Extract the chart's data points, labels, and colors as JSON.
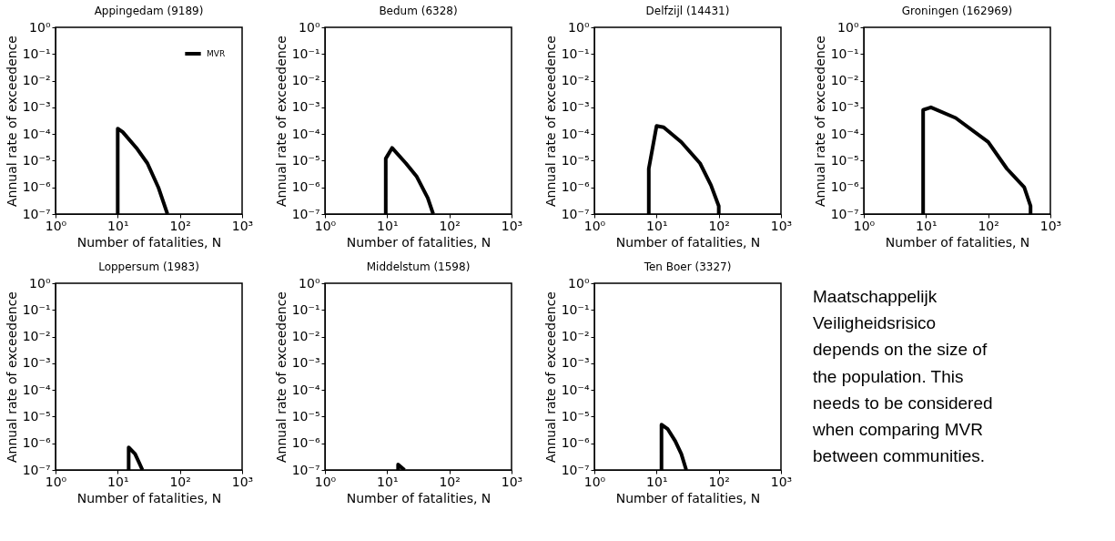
{
  "chart_data": [
    {
      "type": "line",
      "title": "Appingedam (9189)",
      "xlabel": "Number of fatalities, N",
      "ylabel": "Annual rate of exceedence",
      "log": "xy",
      "grid": false,
      "legend": "top right",
      "marker": "none",
      "line_style": "solid",
      "xlim": [
        1,
        1000
      ],
      "ylim": [
        1e-07,
        1
      ],
      "xticks": [
        {
          "value": 1,
          "label": "10⁰"
        },
        {
          "value": 10,
          "label": "10¹"
        },
        {
          "value": 100,
          "label": "10²"
        },
        {
          "value": 1000,
          "label": "10³"
        }
      ],
      "yticks": [
        {
          "value": 1e-07,
          "label": "10⁻⁷"
        },
        {
          "value": 1e-06,
          "label": "10⁻⁶"
        },
        {
          "value": 1e-05,
          "label": "10⁻⁵"
        },
        {
          "value": 0.0001,
          "label": "10⁻⁴"
        },
        {
          "value": 0.001,
          "label": "10⁻³"
        },
        {
          "value": 0.01,
          "label": "10⁻²"
        },
        {
          "value": 0.1,
          "label": "10⁻¹"
        },
        {
          "value": 1,
          "label": "10⁰"
        }
      ],
      "series": [
        {
          "name": "MVR",
          "color": "#000000",
          "x": [
            10,
            10,
            12,
            20,
            30,
            45,
            63
          ],
          "values": [
            1e-07,
            0.00016,
            0.00012,
            3e-05,
            8e-06,
            1e-06,
            1e-07
          ]
        }
      ]
    },
    {
      "type": "line",
      "title": "Bedum (6328)",
      "xlabel": "Number of fatalities, N",
      "ylabel": "Annual rate of exceedence",
      "log": "xy",
      "grid": false,
      "marker": "none",
      "line_style": "solid",
      "xlim": [
        1,
        1000
      ],
      "ylim": [
        1e-07,
        1
      ],
      "xticks": [
        {
          "value": 1,
          "label": "10⁰"
        },
        {
          "value": 10,
          "label": "10¹"
        },
        {
          "value": 100,
          "label": "10²"
        },
        {
          "value": 1000,
          "label": "10³"
        }
      ],
      "yticks": [
        {
          "value": 1e-07,
          "label": "10⁻⁷"
        },
        {
          "value": 1e-06,
          "label": "10⁻⁶"
        },
        {
          "value": 1e-05,
          "label": "10⁻⁵"
        },
        {
          "value": 0.0001,
          "label": "10⁻⁴"
        },
        {
          "value": 0.001,
          "label": "10⁻³"
        },
        {
          "value": 0.01,
          "label": "10⁻²"
        },
        {
          "value": 0.1,
          "label": "10⁻¹"
        },
        {
          "value": 1,
          "label": "10⁰"
        }
      ],
      "series": [
        {
          "color": "#000000",
          "x": [
            9.5,
            9.5,
            12,
            20,
            30,
            45,
            55
          ],
          "values": [
            1e-07,
            1.2e-05,
            3e-05,
            8e-06,
            2.5e-06,
            4e-07,
            1e-07
          ]
        }
      ]
    },
    {
      "type": "line",
      "title": "Delfzijl (14431)",
      "xlabel": "Number of fatalities, N",
      "ylabel": "Annual rate of exceedence",
      "log": "xy",
      "grid": false,
      "marker": "none",
      "line_style": "solid",
      "xlim": [
        1,
        1000
      ],
      "ylim": [
        1e-07,
        1
      ],
      "xticks": [
        {
          "value": 1,
          "label": "10⁰"
        },
        {
          "value": 10,
          "label": "10¹"
        },
        {
          "value": 100,
          "label": "10²"
        },
        {
          "value": 1000,
          "label": "10³"
        }
      ],
      "yticks": [
        {
          "value": 1e-07,
          "label": "10⁻⁷"
        },
        {
          "value": 1e-06,
          "label": "10⁻⁶"
        },
        {
          "value": 1e-05,
          "label": "10⁻⁵"
        },
        {
          "value": 0.0001,
          "label": "10⁻⁴"
        },
        {
          "value": 0.001,
          "label": "10⁻³"
        },
        {
          "value": 0.01,
          "label": "10⁻²"
        },
        {
          "value": 0.1,
          "label": "10⁻¹"
        },
        {
          "value": 1,
          "label": "10⁰"
        }
      ],
      "series": [
        {
          "color": "#000000",
          "x": [
            7.5,
            7.5,
            10,
            13,
            25,
            50,
            75,
            100,
            100
          ],
          "values": [
            1e-07,
            5e-06,
            0.0002,
            0.00018,
            5e-05,
            8e-06,
            1.2e-06,
            2e-07,
            1e-07
          ]
        }
      ]
    },
    {
      "type": "line",
      "title": "Groningen (162969)",
      "xlabel": "Number of fatalities, N",
      "ylabel": "Annual rate of exceedence",
      "log": "xy",
      "grid": false,
      "marker": "none",
      "line_style": "solid",
      "xlim": [
        1,
        1000
      ],
      "ylim": [
        1e-07,
        1
      ],
      "xticks": [
        {
          "value": 1,
          "label": "10⁰"
        },
        {
          "value": 10,
          "label": "10¹"
        },
        {
          "value": 100,
          "label": "10²"
        },
        {
          "value": 1000,
          "label": "10³"
        }
      ],
      "yticks": [
        {
          "value": 1e-07,
          "label": "10⁻⁷"
        },
        {
          "value": 1e-06,
          "label": "10⁻⁶"
        },
        {
          "value": 1e-05,
          "label": "10⁻⁵"
        },
        {
          "value": 0.0001,
          "label": "10⁻⁴"
        },
        {
          "value": 0.001,
          "label": "10⁻³"
        },
        {
          "value": 0.01,
          "label": "10⁻²"
        },
        {
          "value": 0.1,
          "label": "10⁻¹"
        },
        {
          "value": 1,
          "label": "10⁰"
        }
      ],
      "series": [
        {
          "color": "#000000",
          "x": [
            9,
            9,
            12,
            30,
            100,
            200,
            380,
            480,
            480
          ],
          "values": [
            1e-07,
            0.0008,
            0.001,
            0.0004,
            5e-05,
            5e-06,
            1e-06,
            2e-07,
            1e-07
          ]
        }
      ]
    },
    {
      "type": "line",
      "title": "Loppersum (1983)",
      "xlabel": "Number of fatalities, N",
      "ylabel": "Annual rate of exceedence",
      "log": "xy",
      "grid": false,
      "marker": "none",
      "line_style": "solid",
      "xlim": [
        1,
        1000
      ],
      "ylim": [
        1e-07,
        1
      ],
      "xticks": [
        {
          "value": 1,
          "label": "10⁰"
        },
        {
          "value": 10,
          "label": "10¹"
        },
        {
          "value": 100,
          "label": "10²"
        },
        {
          "value": 1000,
          "label": "10³"
        }
      ],
      "yticks": [
        {
          "value": 1e-07,
          "label": "10⁻⁷"
        },
        {
          "value": 1e-06,
          "label": "10⁻⁶"
        },
        {
          "value": 1e-05,
          "label": "10⁻⁵"
        },
        {
          "value": 0.0001,
          "label": "10⁻⁴"
        },
        {
          "value": 0.001,
          "label": "10⁻³"
        },
        {
          "value": 0.01,
          "label": "10⁻²"
        },
        {
          "value": 0.1,
          "label": "10⁻¹"
        },
        {
          "value": 1,
          "label": "10⁰"
        }
      ],
      "series": [
        {
          "color": "#000000",
          "x": [
            15,
            15,
            19,
            25
          ],
          "values": [
            1e-07,
            7e-07,
            4e-07,
            1e-07
          ]
        }
      ]
    },
    {
      "type": "line",
      "title": "Middelstum (1598)",
      "xlabel": "Number of fatalities, N",
      "ylabel": "Annual rate of exceedence",
      "log": "xy",
      "grid": false,
      "marker": "none",
      "line_style": "solid",
      "xlim": [
        1,
        1000
      ],
      "ylim": [
        1e-07,
        1
      ],
      "xticks": [
        {
          "value": 1,
          "label": "10⁰"
        },
        {
          "value": 10,
          "label": "10¹"
        },
        {
          "value": 100,
          "label": "10²"
        },
        {
          "value": 1000,
          "label": "10³"
        }
      ],
      "yticks": [
        {
          "value": 1e-07,
          "label": "10⁻⁷"
        },
        {
          "value": 1e-06,
          "label": "10⁻⁶"
        },
        {
          "value": 1e-05,
          "label": "10⁻⁵"
        },
        {
          "value": 0.0001,
          "label": "10⁻⁴"
        },
        {
          "value": 0.001,
          "label": "10⁻³"
        },
        {
          "value": 0.01,
          "label": "10⁻²"
        },
        {
          "value": 0.1,
          "label": "10⁻¹"
        },
        {
          "value": 1,
          "label": "10⁰"
        }
      ],
      "series": [
        {
          "color": "#000000",
          "x": [
            15,
            15,
            19
          ],
          "values": [
            1e-07,
            1.6e-07,
            1e-07
          ]
        }
      ]
    },
    {
      "type": "line",
      "title": "Ten Boer (3327)",
      "xlabel": "Number of fatalities, N",
      "ylabel": "Annual rate of exceedence",
      "log": "xy",
      "grid": false,
      "marker": "none",
      "line_style": "solid",
      "xlim": [
        1,
        1000
      ],
      "ylim": [
        1e-07,
        1
      ],
      "xticks": [
        {
          "value": 1,
          "label": "10⁰"
        },
        {
          "value": 10,
          "label": "10¹"
        },
        {
          "value": 100,
          "label": "10²"
        },
        {
          "value": 1000,
          "label": "10³"
        }
      ],
      "yticks": [
        {
          "value": 1e-07,
          "label": "10⁻⁷"
        },
        {
          "value": 1e-06,
          "label": "10⁻⁶"
        },
        {
          "value": 1e-05,
          "label": "10⁻⁵"
        },
        {
          "value": 0.0001,
          "label": "10⁻⁴"
        },
        {
          "value": 0.001,
          "label": "10⁻³"
        },
        {
          "value": 0.01,
          "label": "10⁻²"
        },
        {
          "value": 0.1,
          "label": "10⁻¹"
        },
        {
          "value": 1,
          "label": "10⁰"
        }
      ],
      "series": [
        {
          "color": "#000000",
          "x": [
            12,
            12,
            15,
            20,
            25,
            30
          ],
          "values": [
            1e-07,
            5e-06,
            3.5e-06,
            1.2e-06,
            4e-07,
            1e-07
          ]
        }
      ]
    },
    {
      "type": "other",
      "annotations": [
        "Maatschappelijk",
        "Veiligheidsrisico",
        "depends on the size of",
        "the population. This",
        "needs to be considered",
        "when comparing MVR",
        "between communities."
      ]
    }
  ]
}
